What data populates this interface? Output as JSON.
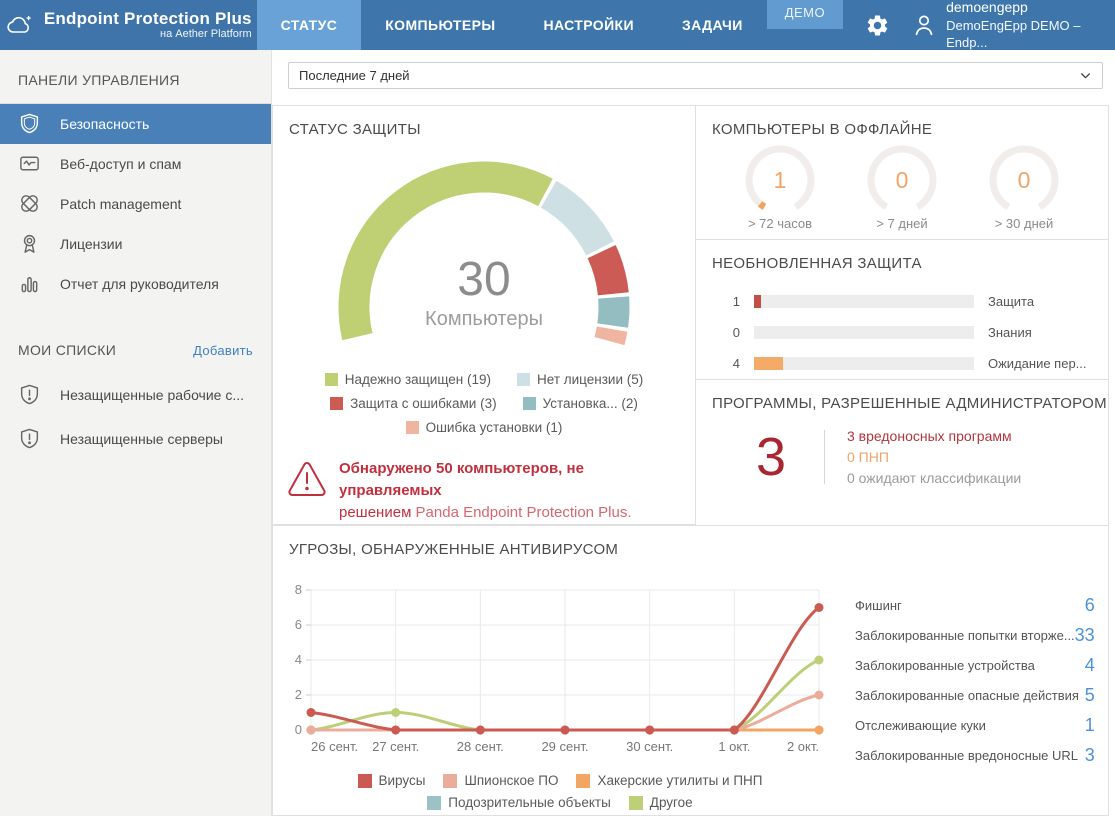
{
  "header": {
    "logo_title": "Endpoint Protection Plus",
    "logo_subtitle": "на Aether Platform",
    "tabs": [
      {
        "name": "status",
        "label": "СТАТУС",
        "active": true
      },
      {
        "name": "computers",
        "label": "КОМПЬЮТЕРЫ",
        "active": false
      },
      {
        "name": "settings",
        "label": "НАСТРОЙКИ",
        "active": false
      },
      {
        "name": "tasks",
        "label": "ЗАДАЧИ",
        "active": false
      }
    ],
    "demo_badge": "ДЕМО",
    "user_name": "demoengepp",
    "user_account": "DemoEngEpp DEMO – Endp..."
  },
  "sidebar": {
    "dashboards_header": "ПАНЕЛИ УПРАВЛЕНИЯ",
    "nav": [
      {
        "name": "security",
        "icon": "shield-icon",
        "label": "Безопасность",
        "active": true
      },
      {
        "name": "web-access-spam",
        "icon": "web-access-icon",
        "label": "Веб-доступ и спам",
        "active": false
      },
      {
        "name": "patch-management",
        "icon": "patch-icon",
        "label": "Patch management",
        "active": false
      },
      {
        "name": "licenses",
        "icon": "license-icon",
        "label": "Лицензии",
        "active": false
      },
      {
        "name": "executive-report",
        "icon": "report-icon",
        "label": "Отчет для руководителя",
        "active": false
      }
    ],
    "my_lists_header": "МОИ СПИСКИ",
    "add_link": "Добавить",
    "lists": [
      {
        "name": "unprotected-workstations",
        "icon": "shield-alert-icon",
        "label": "Незащищенные рабочие с..."
      },
      {
        "name": "unprotected-servers",
        "icon": "shield-alert-icon",
        "label": "Незащищенные серверы"
      }
    ]
  },
  "filter": {
    "value": "Последние 7 дней"
  },
  "panels": {
    "protection_status": {
      "title": "СТАТУС ЗАЩИТЫ",
      "center_value": "30",
      "center_label": "Компьютеры",
      "warning_line1": "Обнаружено 50 компьютеров, не управляемых",
      "warning_line2_prefix": "решением ",
      "warning_line2_brand": "Panda Endpoint Protection Plus."
    },
    "offline_computers": {
      "title": "КОМПЬЮТЕРЫ В ОФФЛАЙНЕ"
    },
    "outdated_protection": {
      "title": "НЕОБНОВЛЕННАЯ ЗАЩИТА"
    },
    "admin_allowed": {
      "title": "ПРОГРАММЫ, РАЗРЕШЕННЫЕ АДМИНИСТРАТОРОМ",
      "total": "3",
      "items": [
        {
          "text": "3 вредоносных программ",
          "color": "#b23541"
        },
        {
          "text": "0 ПНП",
          "color": "#f0a469"
        },
        {
          "text": "0 ожидают классификации",
          "color": "#9b9b9b"
        }
      ]
    },
    "threats": {
      "title": "УГРОЗЫ, ОБНАРУЖЕННЫЕ АНТИВИРУСОМ",
      "list": [
        {
          "label": "Фишинг",
          "count": "6"
        },
        {
          "label": "Заблокированные попытки вторже...",
          "count": "33"
        },
        {
          "label": "Заблокированные устройства",
          "count": "4"
        },
        {
          "label": "Заблокированные опасные действия",
          "count": "5"
        },
        {
          "label": "Отслеживающие куки",
          "count": "1"
        },
        {
          "label": "Заблокированные вредоносные URL",
          "count": "3"
        }
      ]
    }
  },
  "chart_data": [
    {
      "id": "protection_status_donut",
      "type": "donut",
      "title": "СТАТУС ЗАЩИТЫ",
      "total": 30,
      "segments": [
        {
          "label": "Надежно защищен",
          "value": 19,
          "color": "#bfcf74"
        },
        {
          "label": "Нет лицензии",
          "value": 5,
          "color": "#cfe0e4"
        },
        {
          "label": "Защита с ошибками",
          "value": 3,
          "color": "#cc5a55"
        },
        {
          "label": "Установка...",
          "value": 2,
          "color": "#93bdc1"
        },
        {
          "label": "Ошибка установки",
          "value": 1,
          "color": "#efb5a1"
        }
      ]
    },
    {
      "id": "offline_gauges",
      "type": "gauge",
      "title": "КОМПЬЮТЕРЫ В ОФФЛАЙНЕ",
      "max": 30,
      "gauges": [
        {
          "value": 1,
          "label": "> 72 часов"
        },
        {
          "value": 0,
          "label": "> 7 дней"
        },
        {
          "value": 0,
          "label": "> 30 дней"
        }
      ]
    },
    {
      "id": "outdated_protection_bars",
      "type": "bar",
      "title": "НЕОБНОВЛЕННАЯ ЗАЩИТА",
      "max": 30,
      "bars": [
        {
          "value": 1,
          "label": "Защита",
          "color": "#c35048"
        },
        {
          "value": 0,
          "label": "Знания",
          "color": "#f0a469"
        },
        {
          "value": 4,
          "label": "Ожидание пер...",
          "color": "#f5ab68"
        }
      ]
    },
    {
      "id": "threats_line",
      "type": "line",
      "title": "УГРОЗЫ, ОБНАРУЖЕННЫЕ АНТИВИРУСОМ",
      "x": [
        "26 сент.",
        "27 сент.",
        "28 сент.",
        "29 сент.",
        "30 сент.",
        "1 окт.",
        "2 окт."
      ],
      "ylim": [
        0,
        8
      ],
      "yticks": [
        0,
        2,
        4,
        6,
        8
      ],
      "grid": true,
      "legend_position": "bottom",
      "series": [
        {
          "name": "Вирусы",
          "color": "#cb5a52",
          "values": [
            1,
            0,
            0,
            0,
            0,
            0,
            7
          ]
        },
        {
          "name": "Шпионское ПО",
          "color": "#ecac9b",
          "values": [
            0,
            0,
            0,
            0,
            0,
            0,
            2
          ]
        },
        {
          "name": "Хакерские утилиты и ПНП",
          "color": "#f3a564",
          "values": [
            0,
            0,
            0,
            0,
            0,
            0,
            0
          ]
        },
        {
          "name": "Подозрительные объекты",
          "color": "#9dc2c6",
          "values": [
            0,
            0,
            0,
            0,
            0,
            0,
            0
          ]
        },
        {
          "name": "Другое",
          "color": "#bdcf77",
          "values": [
            0,
            1,
            0,
            0,
            0,
            0,
            4
          ]
        }
      ]
    }
  ]
}
